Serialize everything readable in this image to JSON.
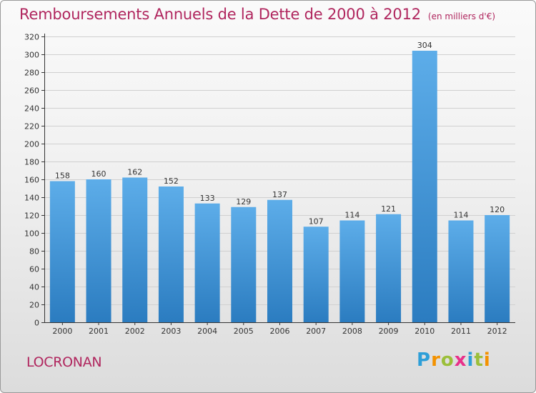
{
  "header": {
    "title": "Remboursements Annuels de la Dette de 2000 à 2012",
    "unit": "(en milliers d'€)"
  },
  "footer": {
    "commune": "LOCRONAN",
    "logo_letters": [
      "P",
      "r",
      "o",
      "x",
      "i",
      "t",
      "i"
    ],
    "logo_colors": [
      "#2e9fd8",
      "#f39200",
      "#9bbf3a",
      "#e8308a",
      "#2e9fd8",
      "#9bbf3a",
      "#f39200"
    ]
  },
  "colors": {
    "title": "#b0265e",
    "bar_top": "#5dade9",
    "bar_bottom": "#2b7cc0",
    "grid": "#d0d0d0",
    "axis": "#333333"
  },
  "chart_data": {
    "type": "bar",
    "categories": [
      "2000",
      "2001",
      "2002",
      "2003",
      "2004",
      "2005",
      "2006",
      "2007",
      "2008",
      "2009",
      "2010",
      "2011",
      "2012"
    ],
    "values": [
      158,
      160,
      162,
      152,
      133,
      129,
      137,
      107,
      114,
      121,
      304,
      114,
      120
    ],
    "ylim": [
      0,
      320
    ],
    "ytick_step": 20,
    "grid": true
  }
}
